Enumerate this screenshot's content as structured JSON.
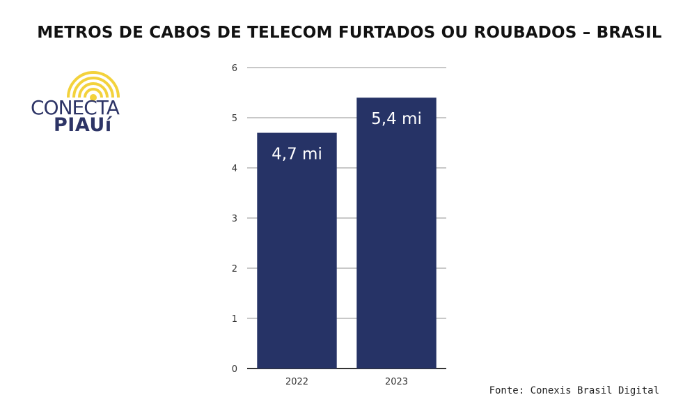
{
  "logo": {
    "line1": "CONECTA",
    "line2": "PIAUí",
    "sun_color": "#f3d23c",
    "text_color": "#2d3466"
  },
  "source": "Fonte: Conexis Brasil Digital",
  "colors": {
    "bar": "#263366",
    "grid": "#c8c8c8",
    "axis": "#333333",
    "label_text": "#ffffff"
  },
  "chart_data": {
    "type": "bar",
    "title": "METROS DE CABOS DE TELECOM FURTADOS OU ROUBADOS – BRASIL",
    "xlabel": "",
    "ylabel": "",
    "categories": [
      "2022",
      "2023"
    ],
    "values": [
      4.7,
      5.4
    ],
    "data_labels": [
      "4,7 mi",
      "5,4 mi"
    ],
    "ylim": [
      0,
      6
    ],
    "yticks": [
      "0",
      "1",
      "2",
      "3",
      "4",
      "5",
      "6"
    ],
    "grid": true,
    "legend": "none"
  }
}
